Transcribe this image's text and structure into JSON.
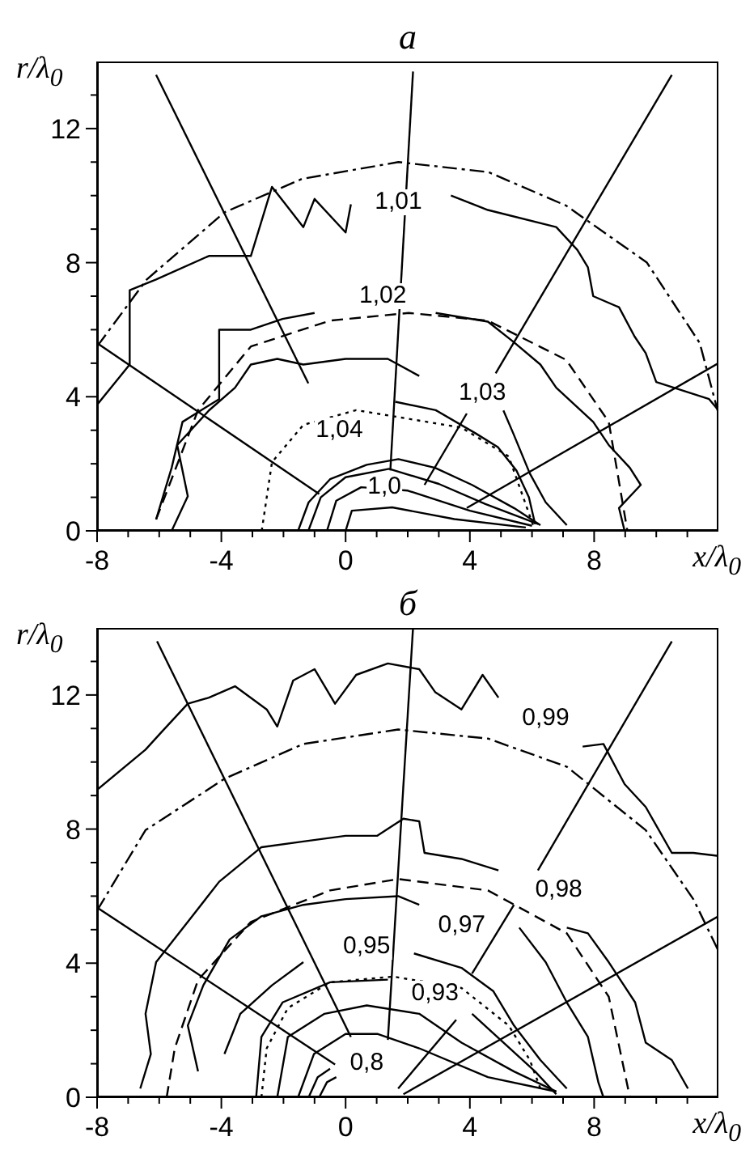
{
  "chart_data": [
    {
      "type": "line",
      "title": "а",
      "xlabel": "x/λ$_{0}$",
      "ylabel": "r/λ$_{0}$",
      "xlim": [
        -8,
        12
      ],
      "ylim": [
        0,
        14
      ],
      "xticks": [
        -8,
        {
          "value": -7,
          "label": null
        },
        {
          "value": -6,
          "label": null
        },
        {
          "value": -5,
          "label": null
        },
        -4,
        {
          "value": -3,
          "label": null
        },
        {
          "value": -2,
          "label": null
        },
        {
          "value": -1,
          "label": null
        },
        0,
        {
          "value": 1,
          "label": null
        },
        {
          "value": 2,
          "label": null
        },
        {
          "value": 3,
          "label": null
        },
        4,
        {
          "value": 5,
          "label": null
        },
        {
          "value": 6,
          "label": null
        },
        {
          "value": 7,
          "label": null
        },
        8,
        {
          "value": 9,
          "label": null
        },
        {
          "value": 10,
          "label": null
        },
        {
          "value": 11,
          "label": null
        }
      ],
      "yticks": [
        0,
        {
          "value": 1,
          "label": null
        },
        {
          "value": 2,
          "label": null
        },
        {
          "value": 3,
          "label": null
        },
        4,
        {
          "value": 5,
          "label": null
        },
        {
          "value": 6,
          "label": null
        },
        {
          "value": 7,
          "label": null
        },
        8,
        {
          "value": 9,
          "label": null
        },
        {
          "value": 10,
          "label": null
        },
        {
          "value": 11,
          "label": null
        },
        12,
        {
          "value": 13,
          "label": null
        }
      ],
      "series": [
        {
          "color": "#000000",
          "line_style": "solid",
          "x": [
            -6.1,
            -1.2
          ],
          "values": [
            13.6,
            4.4
          ]
        },
        {
          "color": "#000000",
          "line_style": "solid",
          "x": [
            -8,
            -0.85
          ],
          "values": [
            5.6,
            1.1
          ]
        },
        {
          "color": "#000000",
          "line_style": "solid",
          "x": [
            2.17,
            1.44
          ],
          "values": [
            13.7,
            1.8
          ]
        },
        {
          "color": "#000000",
          "line_style": "solid",
          "x": [
            10.5,
            4.83
          ],
          "values": [
            13.6,
            4.7
          ]
        },
        {
          "color": "#000000",
          "line_style": "solid",
          "x": [
            3.9,
            2.54
          ],
          "values": [
            3.5,
            1.37
          ]
        },
        {
          "color": "#000000",
          "line_style": "solid",
          "x": [
            12,
            3.9
          ],
          "values": [
            5.0,
            0.68
          ]
        },
        {
          "color": "#000000",
          "line_style": "dashdot",
          "x": [
            -8,
            -6.4,
            -3.9,
            -1.4,
            1.7,
            4.6,
            7.1,
            9.7,
            11.4,
            12
          ],
          "values": [
            5.5,
            7.5,
            9.5,
            10.5,
            11.0,
            10.7,
            9.7,
            8.0,
            5.6,
            3.5
          ]
        },
        {
          "color": "#000000",
          "line_style": "dashed",
          "x": [
            -6.1,
            -4.75,
            -3.05,
            -0.5,
            2.03,
            4.58,
            7.1,
            8.47,
            9.07
          ],
          "values": [
            0.34,
            3.6,
            5.5,
            6.27,
            6.5,
            6.27,
            5.1,
            3.25,
            0
          ]
        },
        {
          "color": "#000000",
          "line_style": "dotted",
          "x": [
            -2.7,
            -2.37,
            -1.36,
            0.34,
            3.73,
            5.25,
            6.1
          ],
          "values": [
            0,
            2.05,
            3.16,
            3.6,
            3.08,
            2.22,
            0
          ]
        },
        {
          "color": "#000000",
          "line_style": "solid",
          "x": [
            -8,
            -6.95,
            -6.95,
            -6.1,
            -4.4,
            -3.05,
            -2.37,
            -1.36,
            -1.0,
            0,
            0.17
          ],
          "values": [
            3.76,
            4.96,
            7.18,
            7.5,
            8.2,
            8.2,
            10.26,
            9.06,
            9.9,
            8.9,
            9.74
          ]
        },
        {
          "color": "#000000",
          "line_style": "solid",
          "x": [
            3.39,
            4.58,
            6.78,
            7.46,
            7.8,
            7.97,
            8.8,
            9.3,
            9.66,
            10.0,
            11.7,
            12
          ],
          "values": [
            10.0,
            9.57,
            9.06,
            8.38,
            7.86,
            7.0,
            6.67,
            5.8,
            5.3,
            4.44,
            3.93,
            3.6
          ]
        },
        {
          "color": "#000000",
          "line_style": "solid",
          "x": [
            -6.1,
            -5.6,
            -5.25,
            -4.07,
            -4.07,
            -3.05,
            -2.03,
            -1.0
          ],
          "values": [
            0.34,
            1.88,
            3.25,
            3.93,
            6.0,
            6.0,
            6.32,
            6.5
          ]
        },
        {
          "color": "#000000",
          "line_style": "solid",
          "x": [
            2.9,
            4.58,
            5.4,
            6.27,
            6.78,
            7.97,
            8.47,
            9.15,
            9.5,
            8.8,
            8.98
          ],
          "values": [
            6.5,
            6.24,
            5.64,
            4.96,
            4.27,
            3.25,
            2.56,
            1.88,
            1.37,
            0.68,
            0
          ]
        },
        {
          "color": "#000000",
          "line_style": "solid",
          "x": [
            -5.6,
            -5.08,
            -5.42,
            -4.4,
            -3.56,
            -3.05,
            -2.2,
            -1.36,
            0,
            1.36,
            2.37
          ],
          "values": [
            0,
            1.03,
            2.56,
            3.59,
            4.27,
            4.96,
            5.13,
            4.96,
            5.13,
            5.13,
            4.62
          ]
        },
        {
          "color": "#000000",
          "line_style": "solid",
          "x": [
            5.08,
            5.4,
            5.93,
            6.44,
            7.12
          ],
          "values": [
            3.59,
            2.9,
            1.71,
            0.85,
            0.17
          ]
        },
        {
          "color": "#000000",
          "line_style": "solid",
          "x": [
            1.6,
            2.9,
            4.2,
            4.9,
            5.5,
            5.9,
            6.1
          ],
          "values": [
            3.85,
            3.6,
            2.9,
            2.5,
            1.8,
            1.0,
            0.2
          ]
        },
        {
          "color": "#000000",
          "line_style": "solid",
          "x": [
            -1.53,
            -1.19,
            -0.5,
            0.68,
            1.7,
            2.88,
            4.07,
            5.42,
            6.27
          ],
          "values": [
            0,
            0.85,
            1.54,
            1.97,
            2.14,
            1.88,
            1.37,
            0.68,
            0.17
          ]
        },
        {
          "color": "#000000",
          "line_style": "solid",
          "x": [
            -1.2,
            -0.8,
            0,
            1.4,
            3,
            4.5,
            6.2
          ],
          "values": [
            0,
            1.0,
            1.6,
            1.85,
            1.4,
            0.8,
            0.2
          ]
        },
        {
          "color": "#000000",
          "line_style": "solid",
          "x": [
            -0.6,
            -0.3,
            0.5,
            2,
            4,
            6
          ],
          "values": [
            0,
            0.9,
            1.3,
            1.2,
            0.6,
            0.15
          ]
        },
        {
          "color": "#000000",
          "line_style": "solid",
          "x": [
            0,
            0.2,
            1.5,
            3.5,
            5.8
          ],
          "values": [
            0,
            0.6,
            0.7,
            0.35,
            0.1
          ]
        }
      ],
      "annotations": [
        "1,01",
        "1,02",
        "1,03",
        "1,04",
        "1,0"
      ]
    },
    {
      "type": "line",
      "title": "б",
      "xlabel": "x/λ$_{0}$",
      "ylabel": "r/λ$_{0}$",
      "xlim": [
        -8,
        12
      ],
      "ylim": [
        0,
        14
      ],
      "xticks": [
        -8,
        {
          "value": -7,
          "label": null
        },
        {
          "value": -6,
          "label": null
        },
        {
          "value": -5,
          "label": null
        },
        -4,
        {
          "value": -3,
          "label": null
        },
        {
          "value": -2,
          "label": null
        },
        {
          "value": -1,
          "label": null
        },
        0,
        {
          "value": 1,
          "label": null
        },
        {
          "value": 2,
          "label": null
        },
        {
          "value": 3,
          "label": null
        },
        4,
        {
          "value": 5,
          "label": null
        },
        {
          "value": 6,
          "label": null
        },
        {
          "value": 7,
          "label": null
        },
        8,
        {
          "value": 9,
          "label": null
        },
        {
          "value": 10,
          "label": null
        },
        {
          "value": 11,
          "label": null
        }
      ],
      "yticks": [
        0,
        {
          "value": 1,
          "label": null
        },
        {
          "value": 2,
          "label": null
        },
        {
          "value": 3,
          "label": null
        },
        4,
        {
          "value": 5,
          "label": null
        },
        {
          "value": 6,
          "label": null
        },
        {
          "value": 7,
          "label": null
        },
        8,
        {
          "value": 9,
          "label": null
        },
        {
          "value": 10,
          "label": null
        },
        {
          "value": 11,
          "label": null
        },
        12,
        {
          "value": 13,
          "label": null
        }
      ],
      "series": [
        {
          "color": "#000000",
          "line_style": "solid",
          "x": [
            -6.07,
            0.17
          ],
          "values": [
            13.6,
            1.8
          ]
        },
        {
          "color": "#000000",
          "line_style": "solid",
          "x": [
            -8,
            -0.34
          ],
          "values": [
            5.66,
            0.98
          ]
        },
        {
          "color": "#000000",
          "line_style": "solid",
          "x": [
            2.17,
            1.36
          ],
          "values": [
            14.0,
            1.71
          ]
        },
        {
          "color": "#000000",
          "line_style": "solid",
          "x": [
            10.5,
            6.19
          ],
          "values": [
            13.6,
            6.77
          ]
        },
        {
          "color": "#000000",
          "line_style": "solid",
          "x": [
            5.42,
            4.07
          ],
          "values": [
            5.74,
            3.69
          ]
        },
        {
          "color": "#000000",
          "line_style": "solid",
          "x": [
            3.56,
            1.69
          ],
          "values": [
            2.31,
            0.26
          ]
        },
        {
          "color": "#000000",
          "line_style": "solid",
          "x": [
            12,
            1.86
          ],
          "values": [
            5.4,
            0.09
          ]
        },
        {
          "color": "#000000",
          "line_style": "dashdot",
          "x": [
            -8,
            -6.44,
            -3.9,
            -1.36,
            1.69,
            4.58,
            7.12,
            9.66,
            11.2,
            12
          ],
          "values": [
            5.57,
            7.97,
            9.5,
            10.54,
            10.97,
            10.7,
            9.86,
            7.97,
            5.9,
            4.37
          ]
        },
        {
          "color": "#000000",
          "line_style": "dashed",
          "x": [
            -5.76,
            -5.5,
            -4.75,
            -3.05,
            -0.5,
            1.69,
            4.58,
            7.12,
            8.47,
            9.15
          ],
          "values": [
            0,
            1.46,
            3.5,
            5.23,
            6.17,
            6.51,
            6.17,
            4.89,
            3.0,
            0
          ]
        },
        {
          "color": "#000000",
          "line_style": "dotted",
          "x": [
            -2.71,
            -2.54,
            -1.86,
            -0.5,
            1.53,
            3.73,
            5.25,
            5.93,
            6.27
          ],
          "values": [
            0,
            1.46,
            2.66,
            3.43,
            3.6,
            3.26,
            2.14,
            1.11,
            0.26
          ]
        },
        {
          "color": "#000000",
          "line_style": "solid",
          "x": [
            -8,
            -6.44,
            -5.93,
            -5.08,
            -4.4,
            -3.56,
            -2.54,
            -2.2,
            -1.69,
            -1.0,
            -0.34,
            0.34,
            1.36,
            2.37,
            2.88,
            3.73,
            4.41,
            4.92
          ],
          "values": [
            9.17,
            10.37,
            10.89,
            11.74,
            11.92,
            12.26,
            11.57,
            11.06,
            12.43,
            12.77,
            11.74,
            12.6,
            12.94,
            12.77,
            12.09,
            11.57,
            12.6,
            11.92
          ]
        },
        {
          "color": "#000000",
          "line_style": "solid",
          "x": [
            7.63,
            8.3,
            8.98,
            9.66,
            10.5,
            11.19,
            12
          ],
          "values": [
            10.46,
            10.54,
            9.34,
            8.66,
            7.29,
            7.29,
            7.2
          ]
        },
        {
          "color": "#000000",
          "line_style": "solid",
          "x": [
            -6.61,
            -6.27,
            -6.44,
            -6.1,
            -5.08,
            -4.07,
            -2.71,
            -1.36,
            0,
            1.02,
            1.86,
            2.37,
            2.54,
            3.73,
            4.92
          ],
          "values": [
            0.26,
            1.29,
            2.49,
            4.03,
            5.23,
            6.43,
            7.46,
            7.63,
            7.8,
            7.8,
            8.31,
            8.23,
            7.29,
            7.11,
            6.77
          ]
        },
        {
          "color": "#000000",
          "line_style": "solid",
          "x": [
            7.12,
            7.8,
            8.47,
            9.32,
            9.66,
            10.5,
            11.02
          ],
          "values": [
            5.06,
            4.89,
            4.03,
            2.83,
            1.63,
            1.11,
            0.26
          ]
        },
        {
          "color": "#000000",
          "line_style": "solid",
          "x": [
            -4.75,
            -5.08,
            -4.58,
            -3.73,
            -2.71,
            -1.36,
            0,
            1.69,
            2.37
          ],
          "values": [
            0.77,
            2.14,
            3.34,
            4.71,
            5.4,
            5.74,
            5.91,
            6.0,
            5.74
          ]
        },
        {
          "color": "#000000",
          "line_style": "solid",
          "x": [
            5.59,
            6.44,
            7.12,
            7.8,
            8.14,
            8.3
          ],
          "values": [
            5.06,
            4.03,
            2.83,
            1.8,
            0.43,
            0
          ]
        },
        {
          "color": "#000000",
          "line_style": "solid",
          "x": [
            -3.9,
            -3.39,
            -2.37,
            -1.36
          ],
          "values": [
            1.29,
            2.49,
            3.34,
            4.03
          ]
        },
        {
          "color": "#000000",
          "line_style": "solid",
          "x": [
            2.2,
            3.73,
            4.75,
            5.42,
            6.27,
            7.12
          ],
          "values": [
            4.29,
            3.86,
            3.17,
            2.14,
            1.11,
            0.26
          ]
        },
        {
          "color": "#000000",
          "line_style": "solid",
          "x": [
            -2.88,
            -2.71,
            -2.03,
            -0.5,
            1.36
          ],
          "values": [
            0,
            1.8,
            2.83,
            3.43,
            3.51
          ]
        },
        {
          "color": "#000000",
          "line_style": "solid",
          "x": [
            4.07,
            5.08,
            6.1,
            6.78
          ],
          "values": [
            2.49,
            1.63,
            0.77,
            0.09
          ]
        },
        {
          "color": "#000000",
          "line_style": "solid",
          "x": [
            -2.2,
            -1.86,
            -0.68,
            0.68,
            2.37,
            3.73,
            5.42,
            6.78
          ],
          "values": [
            0,
            1.8,
            2.49,
            2.74,
            2.49,
            1.63,
            0.77,
            0.17
          ]
        },
        {
          "color": "#000000",
          "line_style": "solid",
          "x": [
            -1.53,
            -1.02,
            0,
            1.02,
            2.37,
            4.58,
            6.78
          ],
          "values": [
            0,
            1.29,
            1.89,
            1.89,
            1.46,
            0.6,
            0.17
          ]
        },
        {
          "color": "#000000",
          "line_style": "solid",
          "x": [
            -1.19,
            -0.9,
            -0.5
          ],
          "values": [
            0,
            0.6,
            0.85
          ]
        },
        {
          "color": "#000000",
          "line_style": "solid",
          "x": [
            -0.85,
            -0.6,
            -0.3
          ],
          "values": [
            0,
            0.45,
            0.6
          ]
        }
      ],
      "annotations": [
        "0,99",
        "0,98",
        "0,97",
        "0,95",
        "0,93",
        "0,8"
      ]
    }
  ]
}
